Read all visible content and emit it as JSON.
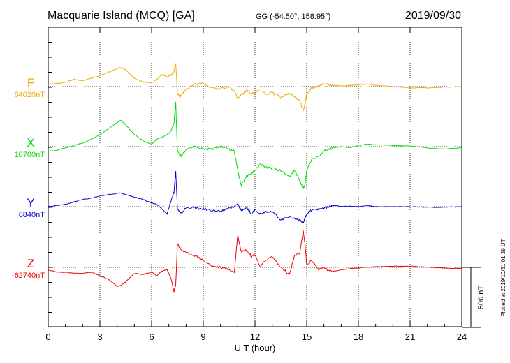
{
  "chart_data": {
    "type": "line",
    "title": "Macquarie Island (MCQ)  [GA]",
    "coords": "GG (-54.50°, 158.95°)",
    "date": "2019/09/30",
    "xlabel": "U T (hour)",
    "xlim": [
      0,
      24
    ],
    "x_ticks": [
      "0",
      "3",
      "6",
      "9",
      "12",
      "15",
      "18",
      "21",
      "24"
    ],
    "scale_bar_label": "500 nT",
    "plotted_note": "Plotted at 2019/10/31 01:39 UT",
    "grid": true,
    "series": [
      {
        "name": "F",
        "baseline_label": "64020nT",
        "color": "#f0a800",
        "x": [
          0,
          0.5,
          1,
          1.5,
          2,
          2.5,
          3,
          3.5,
          4,
          4.2,
          4.5,
          5,
          5.5,
          6,
          6.3,
          6.6,
          6.9,
          7.1,
          7.3,
          7.4,
          7.5,
          7.7,
          8,
          8.5,
          9,
          9.5,
          10,
          10.5,
          10.8,
          11,
          11.2,
          11.5,
          11.8,
          12,
          12.3,
          12.6,
          13,
          13.5,
          14,
          14.3,
          14.6,
          14.8,
          14.9,
          15,
          15.3,
          15.7,
          16,
          16.3,
          16.6,
          17,
          17.5,
          18,
          18.5,
          19,
          20,
          21,
          22,
          23,
          24
        ],
        "y": [
          20,
          25,
          35,
          60,
          50,
          70,
          90,
          120,
          150,
          160,
          140,
          70,
          40,
          30,
          60,
          100,
          80,
          100,
          120,
          200,
          -60,
          -80,
          -20,
          20,
          30,
          -10,
          -20,
          0,
          -40,
          -100,
          -70,
          -30,
          -60,
          -50,
          -30,
          -60,
          -50,
          -90,
          -60,
          -80,
          -120,
          -200,
          -150,
          -60,
          -10,
          0,
          30,
          10,
          10,
          5,
          10,
          15,
          20,
          10,
          0,
          -10,
          -10,
          -5,
          0
        ]
      },
      {
        "name": "X",
        "baseline_label": "10700nT",
        "color": "#00dd00",
        "x": [
          0,
          0.5,
          1,
          1.5,
          2,
          2.5,
          3,
          3.5,
          4,
          4.2,
          4.5,
          5,
          5.5,
          6,
          6.3,
          6.6,
          6.9,
          7.1,
          7.3,
          7.4,
          7.5,
          7.7,
          8,
          8.5,
          9,
          9.5,
          10,
          10.5,
          10.8,
          11,
          11.2,
          11.5,
          11.8,
          12,
          12.3,
          12.6,
          13,
          13.5,
          14,
          14.3,
          14.6,
          14.8,
          14.9,
          15,
          15.3,
          15.7,
          16,
          16.3,
          16.6,
          17,
          17.5,
          18,
          18.5,
          19,
          20,
          21,
          22,
          23,
          24
        ],
        "y": [
          -40,
          -30,
          -10,
          10,
          30,
          60,
          100,
          150,
          200,
          220,
          180,
          100,
          50,
          20,
          60,
          80,
          100,
          120,
          200,
          370,
          -40,
          -80,
          -20,
          0,
          -20,
          -20,
          0,
          -20,
          -40,
          -200,
          -320,
          -250,
          -220,
          -200,
          -150,
          -170,
          -180,
          -200,
          -250,
          -200,
          -280,
          -350,
          -320,
          -200,
          -100,
          -80,
          -40,
          -20,
          -10,
          0,
          -10,
          10,
          20,
          15,
          10,
          5,
          -10,
          -20,
          -10
        ]
      },
      {
        "name": "Y",
        "baseline_label": "6840nT",
        "color": "#0000cc",
        "x": [
          0,
          0.5,
          1,
          1.5,
          2,
          2.5,
          3,
          3.5,
          4,
          4.2,
          4.5,
          5,
          5.5,
          6,
          6.3,
          6.6,
          6.9,
          7.1,
          7.3,
          7.4,
          7.5,
          7.7,
          8,
          8.5,
          9,
          9.5,
          10,
          10.5,
          10.8,
          11,
          11.2,
          11.5,
          11.8,
          12,
          12.3,
          12.6,
          13,
          13.5,
          14,
          14.3,
          14.6,
          14.8,
          14.9,
          15,
          15.3,
          15.7,
          16,
          16.3,
          16.6,
          17,
          17.5,
          18,
          18.5,
          19,
          20,
          21,
          22,
          23,
          24
        ],
        "y": [
          0,
          10,
          20,
          40,
          60,
          70,
          90,
          100,
          110,
          115,
          100,
          80,
          60,
          30,
          20,
          -20,
          -60,
          40,
          120,
          300,
          -20,
          -60,
          -10,
          -10,
          -20,
          -30,
          -40,
          -10,
          0,
          20,
          -30,
          -10,
          -60,
          -20,
          -60,
          -40,
          -40,
          -110,
          -80,
          -100,
          -110,
          -140,
          -100,
          -60,
          -30,
          -20,
          -10,
          0,
          10,
          0,
          5,
          0,
          10,
          0,
          0,
          0,
          -5,
          -5,
          0
        ]
      },
      {
        "name": "Z",
        "baseline_label": "-62740nT",
        "color": "#ee0000",
        "x": [
          0,
          0.5,
          1,
          1.5,
          2,
          2.5,
          3,
          3.5,
          4,
          4.2,
          4.5,
          5,
          5.5,
          6,
          6.3,
          6.6,
          6.9,
          7.1,
          7.3,
          7.4,
          7.5,
          7.7,
          8,
          8.5,
          9,
          9.5,
          10,
          10.5,
          10.8,
          11,
          11.2,
          11.5,
          11.8,
          12,
          12.3,
          12.6,
          13,
          13.5,
          14,
          14.3,
          14.6,
          14.8,
          14.9,
          15,
          15.3,
          15.7,
          16,
          16.3,
          16.6,
          17,
          17.5,
          18,
          18.5,
          19,
          20,
          21,
          22,
          23,
          24
        ],
        "y": [
          -20,
          -40,
          -40,
          -50,
          -50,
          -40,
          -70,
          -100,
          -160,
          -150,
          -120,
          -50,
          -60,
          -40,
          -70,
          -30,
          -20,
          -80,
          -200,
          -150,
          200,
          150,
          120,
          100,
          60,
          10,
          0,
          -20,
          -40,
          270,
          130,
          150,
          90,
          110,
          0,
          60,
          90,
          0,
          -60,
          100,
          120,
          300,
          200,
          20,
          60,
          -20,
          0,
          -30,
          -30,
          -20,
          -10,
          -5,
          0,
          5,
          10,
          10,
          0,
          -5,
          -10
        ]
      }
    ],
    "ylim_per_panel_nT": [
      -500,
      500
    ]
  }
}
